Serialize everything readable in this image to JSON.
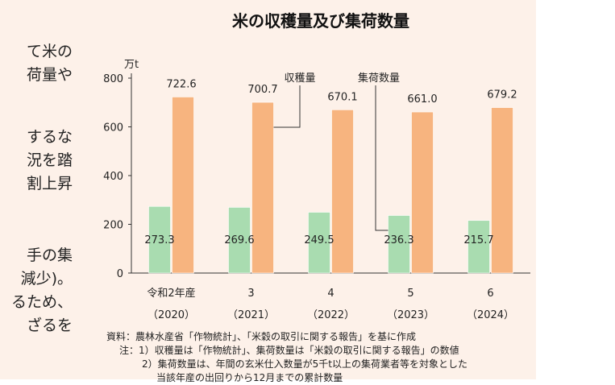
{
  "left_text": [
    "て米の",
    "荷量や",
    "するな",
    "況を踏",
    "割上昇",
    "手の集",
    "減少)。",
    "るため、",
    "ざるを"
  ],
  "chart_data": {
    "type": "bar",
    "title": "米の収穫量及び集荷数量",
    "yunit": "万t",
    "ylim": [
      0,
      800
    ],
    "yticks": [
      0,
      200,
      400,
      600,
      800
    ],
    "categories": [
      "令和2年産",
      "3",
      "4",
      "5",
      "6"
    ],
    "category_years": [
      "（2020）",
      "（2021）",
      "（2022）",
      "（2023）",
      "（2024）"
    ],
    "series": [
      {
        "name": "集荷数量",
        "values": [
          273.3,
          269.6,
          249.5,
          236.3,
          215.7
        ],
        "color": "#a9dcb0"
      },
      {
        "name": "収穫量",
        "values": [
          722.6,
          700.7,
          670.1,
          661.0,
          679.2
        ],
        "color": "#f7b47f"
      }
    ],
    "value_labels": {
      "集荷数量": [
        "273.3",
        "269.6",
        "249.5",
        "236.3",
        "215.7"
      ],
      "収穫量": [
        "722.6",
        "700.7",
        "670.1",
        "661.0",
        "679.2"
      ]
    }
  },
  "notes": {
    "source": "資料：農林水産省「作物統計」、「米穀の取引に関する報告」を基に作成",
    "note1": "注：1）収穫量は「作物統計」、集荷数量は「米穀の取引に関する報告」の数値",
    "note2": "2）集荷数量は、年間の玄米仕入数量が5千t以上の集荷業者等を対象とした",
    "note3": "当該年産の出回りから12月までの累計数量"
  }
}
